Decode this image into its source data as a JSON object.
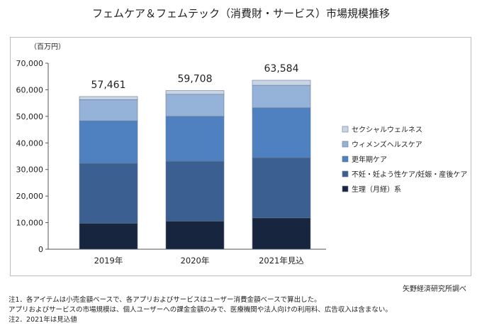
{
  "title": "フェムケア＆フェムテック（消費財・サービス）市場規模推移",
  "source": "矢野経済研究所調べ",
  "notes": [
    "注1．各アイテムは小売金額ベースで、各アプリおよびサービスはユーザー消費金額ベースで算出した。",
    "アプリおよびサービスの市場規模は、個人ユーザーへの課金金額のみで、医療機関や法人向けの利用料、広告収入は含まない。",
    "注2．2021年は見込値"
  ],
  "chart_data": {
    "type": "bar",
    "stacked": true,
    "unit_label": "（百万円）",
    "categories": [
      "2019年",
      "2020年",
      "2021年見込"
    ],
    "totals": [
      57461,
      59708,
      63584
    ],
    "total_labels": [
      "57,461",
      "59,708",
      "63,584"
    ],
    "ylim": [
      0,
      70000
    ],
    "yticks": [
      0,
      10000,
      20000,
      30000,
      40000,
      50000,
      60000,
      70000
    ],
    "ytick_labels": [
      "0",
      "10,000",
      "20,000",
      "30,000",
      "40,000",
      "50,000",
      "60,000",
      "70,000"
    ],
    "grid": false,
    "legend_position": "right",
    "series": [
      {
        "name": "生理（月経）系",
        "color": "#17253f",
        "values": [
          9800,
          10600,
          11800
        ]
      },
      {
        "name": "不妊・妊よう性ケア/妊娠・産後ケア",
        "color": "#3c5f92",
        "values": [
          22500,
          22500,
          22600
        ]
      },
      {
        "name": "更年期ケア",
        "color": "#4f80bf",
        "values": [
          16000,
          16900,
          18800
        ]
      },
      {
        "name": "ウィメンズヘルスケア",
        "color": "#95b2d9",
        "values": [
          8000,
          8300,
          8500
        ]
      },
      {
        "name": "セクシャルウェルネス",
        "color": "#c8d5e6",
        "values": [
          1161,
          1408,
          1884
        ]
      }
    ]
  }
}
